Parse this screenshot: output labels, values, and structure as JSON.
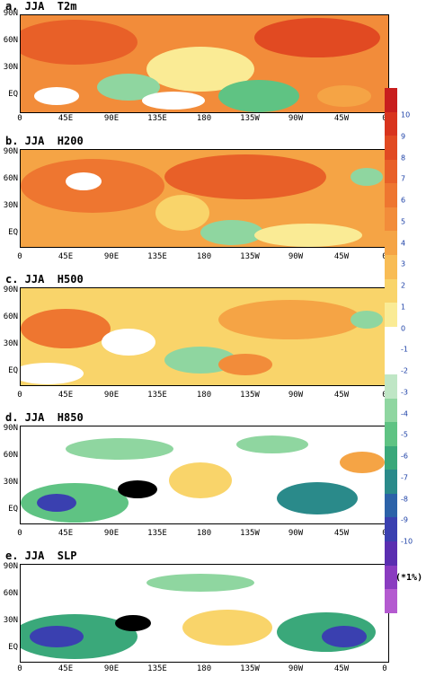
{
  "panels": [
    {
      "title": "a. JJA  T2m",
      "id": "t2m"
    },
    {
      "title": "b. JJA  H200",
      "id": "h200"
    },
    {
      "title": "c. JJA  H500",
      "id": "h500"
    },
    {
      "title": "d. JJA  H850",
      "id": "h850"
    },
    {
      "title": "e. JJA  SLP",
      "id": "slp"
    }
  ],
  "lat_labels": [
    "90N",
    "60N",
    "30N",
    "EQ"
  ],
  "lon_labels": [
    "0",
    "45E",
    "90E",
    "135E",
    "180",
    "135W",
    "90W",
    "45W",
    "0"
  ],
  "colorbar": {
    "labels": [
      "10",
      "9",
      "8",
      "7",
      "6",
      "5",
      "4",
      "3",
      "2",
      "1",
      "0",
      "-1",
      "-2",
      "-3",
      "-4",
      "-5",
      "-6",
      "-7",
      "-8",
      "-9",
      "-10"
    ],
    "colors": [
      "#c81e1e",
      "#d8341e",
      "#e14a22",
      "#e86028",
      "#ee7630",
      "#f28c3a",
      "#f5a445",
      "#f8bc55",
      "#f9d46a",
      "#faeb95",
      "#ffffff",
      "#ffffff",
      "#bfe6c5",
      "#8fd6a0",
      "#5fc383",
      "#3aa87a",
      "#2a8a8a",
      "#2c62a8",
      "#3a40b0",
      "#5a2eb0",
      "#8a3cc0",
      "#b45ad0"
    ],
    "unit": "(*1%)"
  }
}
